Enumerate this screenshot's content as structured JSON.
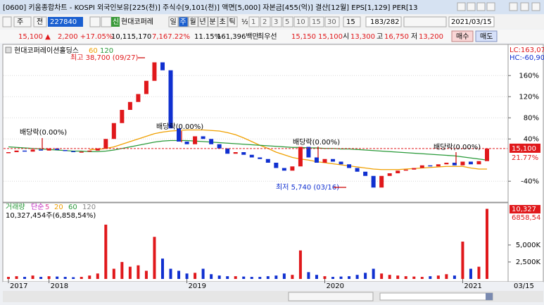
{
  "window": {
    "title": "[0600] 키움종합차트 - KOSPI 외국인보유[225(천)] 주식수[9,101(천)] 액면[5,000] 자본금[455(억)] 결산[12월] EPS[1,129] PER[13"
  },
  "toolbar": {
    "period": "주",
    "all": "전",
    "code": "227840",
    "new": "신",
    "name": "현대코퍼레",
    "tabs": [
      "일",
      "주",
      "월",
      "년",
      "분",
      "초",
      "틱"
    ],
    "half": "½",
    "intervals": [
      "1",
      "2",
      "3",
      "5",
      "10",
      "15",
      "30"
    ],
    "count": "15",
    "range": "183/282",
    "date": "2021/03/15"
  },
  "quote": {
    "price": "15,100 ▲",
    "change": "2,200 +17.05%",
    "volume": "10,115,170",
    "vol_ratio": "7,167.22%",
    "turnover": "11.15%",
    "amount": "161,396백만",
    "best": "최우선",
    "ask": "15,150",
    "bid": "15,100",
    "open_label": "시",
    "open": "13,300",
    "high_label": "고",
    "high": "16,750",
    "low_label": "저",
    "low": "13,200",
    "buy": "매수",
    "sell": "매도"
  },
  "chart_data": [
    {
      "type": "candle",
      "title": "현대코퍼레이션홀딩스",
      "categories": [
        "2017",
        null,
        null,
        null,
        null,
        "2018",
        null,
        null,
        null,
        null,
        null,
        null,
        null,
        null,
        null,
        null,
        null,
        null,
        null,
        null,
        null,
        null,
        "2019",
        null,
        null,
        null,
        null,
        null,
        null,
        null,
        null,
        null,
        null,
        null,
        null,
        null,
        null,
        null,
        null,
        "2020",
        null,
        null,
        null,
        null,
        null,
        null,
        null,
        null,
        null,
        null,
        null,
        null,
        null,
        null,
        null,
        null,
        "2021",
        null,
        null,
        "03/15"
      ],
      "series": [
        {
          "name": "현대코퍼레이션홀딩스",
          "values": [
            15,
            18,
            16,
            20,
            18,
            22,
            19,
            17,
            15,
            16,
            18,
            22,
            40,
            70,
            95,
            110,
            125,
            150,
            185,
            170,
            60,
            35,
            30,
            45,
            40,
            30,
            22,
            12,
            15,
            10,
            5,
            2,
            -5,
            -15,
            -20,
            -12,
            25,
            5,
            -5,
            2,
            -3,
            -8,
            -15,
            -22,
            -30,
            -52,
            -30,
            -25,
            -20,
            -18,
            -15,
            -10,
            -12,
            -8,
            -5,
            -10,
            -3,
            -8,
            -2,
            21.77
          ]
        },
        {
          "name": "60",
          "color": "#f0a000",
          "values": [
            null,
            null,
            null,
            null,
            null,
            null,
            null,
            null,
            null,
            null,
            20,
            20,
            22,
            25,
            30,
            35,
            40,
            45,
            50,
            53,
            55,
            56,
            57,
            57,
            57,
            56,
            55,
            52,
            48,
            42,
            35,
            28,
            22,
            15,
            10,
            5,
            2,
            0,
            -3,
            -5,
            -7,
            -9,
            -11,
            -13,
            -15,
            -17,
            -18,
            -18,
            -18,
            -17,
            -16,
            -15,
            -14,
            -13,
            -12,
            -12,
            -12,
            -15,
            -17,
            -17
          ]
        },
        {
          "name": "120",
          "color": "#2a9a3a",
          "values": [
            25,
            24,
            23,
            22,
            21,
            20,
            19,
            18,
            17,
            17,
            16,
            16,
            17,
            19,
            22,
            25,
            28,
            31,
            34,
            36,
            37,
            37,
            37,
            36,
            35,
            34,
            33,
            32,
            31,
            30,
            29,
            28,
            27,
            26,
            25,
            24,
            24,
            23,
            23,
            22,
            22,
            21,
            21,
            20,
            19,
            18,
            17,
            16,
            15,
            14,
            13,
            12,
            11,
            10,
            9,
            8,
            6,
            4,
            2,
            0
          ]
        }
      ],
      "up_color": "#e0181b",
      "down_color": "#1030d0",
      "ylim": [
        -77,
        215
      ],
      "yticks": [
        {
          "value": 160,
          "label": "160%"
        },
        {
          "value": 120,
          "label": "120%"
        },
        {
          "value": 80,
          "label": "80%"
        },
        {
          "value": 40,
          "label": "40%"
        },
        {
          "value": -40,
          "label": "-40%"
        }
      ],
      "last_price": "15,100",
      "last_change": "21.77%",
      "lc": "LC:163,07",
      "hc": "HC:-60,90",
      "annotations": [
        "최고 38,700 (09/27)",
        "최저 5,740 (03/16)",
        "배당락(0.00%)",
        "배당락(0.00%)",
        "배당락(0.00%)",
        "배당락(0.00%)"
      ]
    },
    {
      "type": "volume",
      "title": "거래량",
      "legend": [
        "단순",
        "5",
        "20",
        "60",
        "120"
      ],
      "subtitle": "10,327,454주(6,858,54%)",
      "values": [
        300,
        400,
        300,
        500,
        300,
        400,
        350,
        300,
        250,
        300,
        500,
        800,
        8000,
        1500,
        2500,
        1800,
        2000,
        1200,
        6200,
        3000,
        1500,
        1200,
        800,
        900,
        1500,
        700,
        500,
        400,
        400,
        350,
        300,
        300,
        400,
        500,
        800,
        600,
        4200,
        1000,
        600,
        400,
        300,
        350,
        400,
        600,
        900,
        1500,
        800,
        600,
        500,
        400,
        350,
        300,
        400,
        500,
        700,
        500,
        5500,
        1500,
        1800,
        10327
      ],
      "value_labels_last": "10,327",
      "ratio_label": "6858,54",
      "ylim": [
        0,
        11000
      ],
      "yticks": [
        {
          "value": 5000,
          "label": "5,000K"
        },
        {
          "value": 2500,
          "label": "2,500K"
        }
      ]
    }
  ]
}
